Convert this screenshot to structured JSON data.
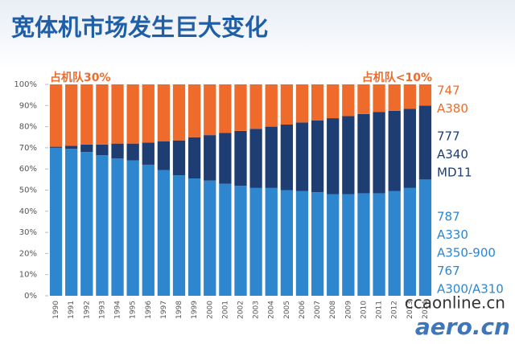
{
  "chart_data": {
    "type": "stacked_bar",
    "title": "宽体机市场发生巨大变化",
    "annotations": [
      "占机队30%",
      "占机队<10%"
    ],
    "watermark": [
      "ccaonline.cn",
      "aero.cn"
    ],
    "categories": [
      "1990",
      "1991",
      "1992",
      "1993",
      "1994",
      "1995",
      "1996",
      "1997",
      "1998",
      "1999",
      "2000",
      "2001",
      "2002",
      "2003",
      "2004",
      "2005",
      "2006",
      "2007",
      "2008",
      "2009",
      "2010",
      "2011",
      "2012",
      "2013",
      "2014"
    ],
    "series": [
      {
        "name": [
          "787",
          "A330",
          "A350-900",
          "767",
          "A300/A310"
        ],
        "color": "#2e86cf",
        "values": [
          70,
          69.5,
          68,
          66.5,
          65,
          64,
          62,
          59.5,
          57,
          55.5,
          54.5,
          53,
          52,
          51,
          51,
          50,
          49.5,
          49,
          48,
          48,
          48.5,
          48.5,
          49.5,
          51,
          55
        ]
      },
      {
        "name": [
          "777",
          "A340",
          "MD11"
        ],
        "color": "#1d3d73",
        "values": [
          0.5,
          1.5,
          3.5,
          5,
          7,
          8,
          10.5,
          13.5,
          16.5,
          19.5,
          21.5,
          24,
          26,
          28,
          29,
          31,
          32.5,
          34,
          36,
          37,
          37.5,
          38.5,
          38,
          37.5,
          35
        ]
      },
      {
        "name": [
          "747",
          "A380"
        ],
        "color": "#ef6b2c",
        "values": [
          29.5,
          29,
          28.5,
          28.5,
          28,
          28,
          27.5,
          27,
          26.5,
          25,
          24,
          23,
          22,
          21,
          20,
          19,
          18,
          17,
          16,
          15,
          14,
          13,
          12.5,
          11.5,
          10
        ]
      }
    ],
    "ylim": [
      0,
      100
    ],
    "yticks": [
      {
        "value": 0,
        "label": "0%"
      },
      {
        "value": 10,
        "label": "10%"
      },
      {
        "value": 20,
        "label": "20%"
      },
      {
        "value": 30,
        "label": "30%"
      },
      {
        "value": 40,
        "label": "40%"
      },
      {
        "value": 50,
        "label": "50%"
      },
      {
        "value": 60,
        "label": "60%"
      },
      {
        "value": 70,
        "label": "70%"
      },
      {
        "value": 80,
        "label": "80%"
      },
      {
        "value": 90,
        "label": "90%"
      },
      {
        "value": 100,
        "label": "100%"
      }
    ]
  }
}
